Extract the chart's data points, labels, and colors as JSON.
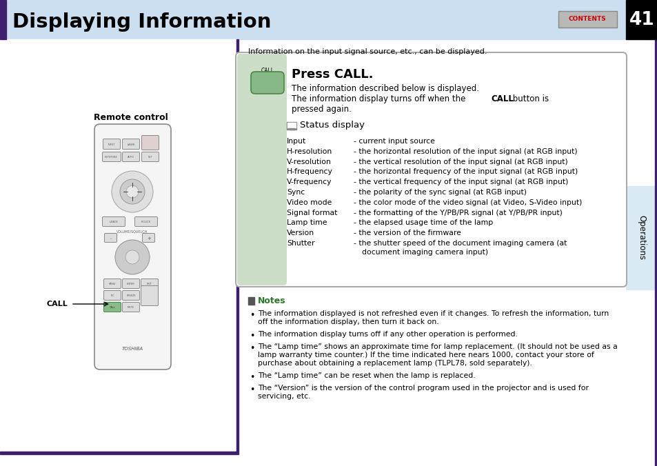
{
  "page_number": "41",
  "title": "Displaying Information",
  "header_bg": "#ccdff0",
  "title_bar_accent": "#3d1f6e",
  "page_num_bg": "#000000",
  "page_num_color": "#ffffff",
  "contents_btn_bg": "#b0b0b0",
  "contents_btn_text": "CONTENTS",
  "contents_btn_text_color": "#cc0000",
  "sidebar_bg": "#daeaf5",
  "sidebar_text": "Operations",
  "intro_text": "Information on the input signal source, etc., can be displayed.",
  "main_box_bg": "#ffffff",
  "main_box_border": "#999999",
  "left_green_strip": "#ccdec8",
  "call_btn_color": "#7ab87a",
  "press_call_title": "Press CALL.",
  "press_call_line1": "The information described below is displayed.",
  "press_call_line2a": "The information display turns off when the ",
  "press_call_line2b": "CALL",
  "press_call_line2c": " button is",
  "press_call_line3": "pressed again.",
  "status_display_label": "Status display",
  "info_rows": [
    [
      "Input          ",
      "- current input source"
    ],
    [
      "H-resolution",
      "- the horizontal resolution of the input signal (at RGB input)"
    ],
    [
      "V-resolution",
      "- the vertical resolution of the input signal (at RGB input)"
    ],
    [
      "H-frequency",
      "- the horizontal frequency of the input signal (at RGB input)"
    ],
    [
      "V-frequency",
      "- the vertical frequency of the input signal (at RGB input)"
    ],
    [
      "Sync          ",
      "- the polarity of the sync signal (at RGB input)"
    ],
    [
      "Video mode",
      "- the color mode of the video signal (at Video, S-Video input)"
    ],
    [
      "Signal format",
      "- the formatting of the Y/PB/PR signal (at Y/PB/PR input)"
    ],
    [
      "Lamp time  ",
      "- the elapsed usage time of the lamp"
    ],
    [
      "Version       ",
      "- the version of the firmware"
    ],
    [
      "Shutter       ",
      "- the shutter speed of the document imaging camera (at"
    ]
  ],
  "shutter_line2": "    document imaging camera input)",
  "notes_title": "Notes",
  "notes": [
    "The information displayed is not refreshed even if it changes. To refresh the information, turn\noff the information display, then turn it back on.",
    "The information display turns off if any other operation is performed.",
    "The “Lamp time” shows an approximate time for lamp replacement. (It should not be used as a\nlamp warranty time counter.) If the time indicated here nears 1000, contact your store of\npurchase about obtaining a replacement lamp (TLPL78, sold separately).",
    "The “Lamp time” can be reset when the lamp is replaced.",
    "The “Version” is the version of the control program used in the projector and is used for\nservicing, etc."
  ],
  "remote_label": "Remote control",
  "call_arrow_label": "CALL",
  "right_bar_color": "#3d1f6e",
  "notes_color": "#2a7a2a",
  "notes_icon_color": "#555555"
}
